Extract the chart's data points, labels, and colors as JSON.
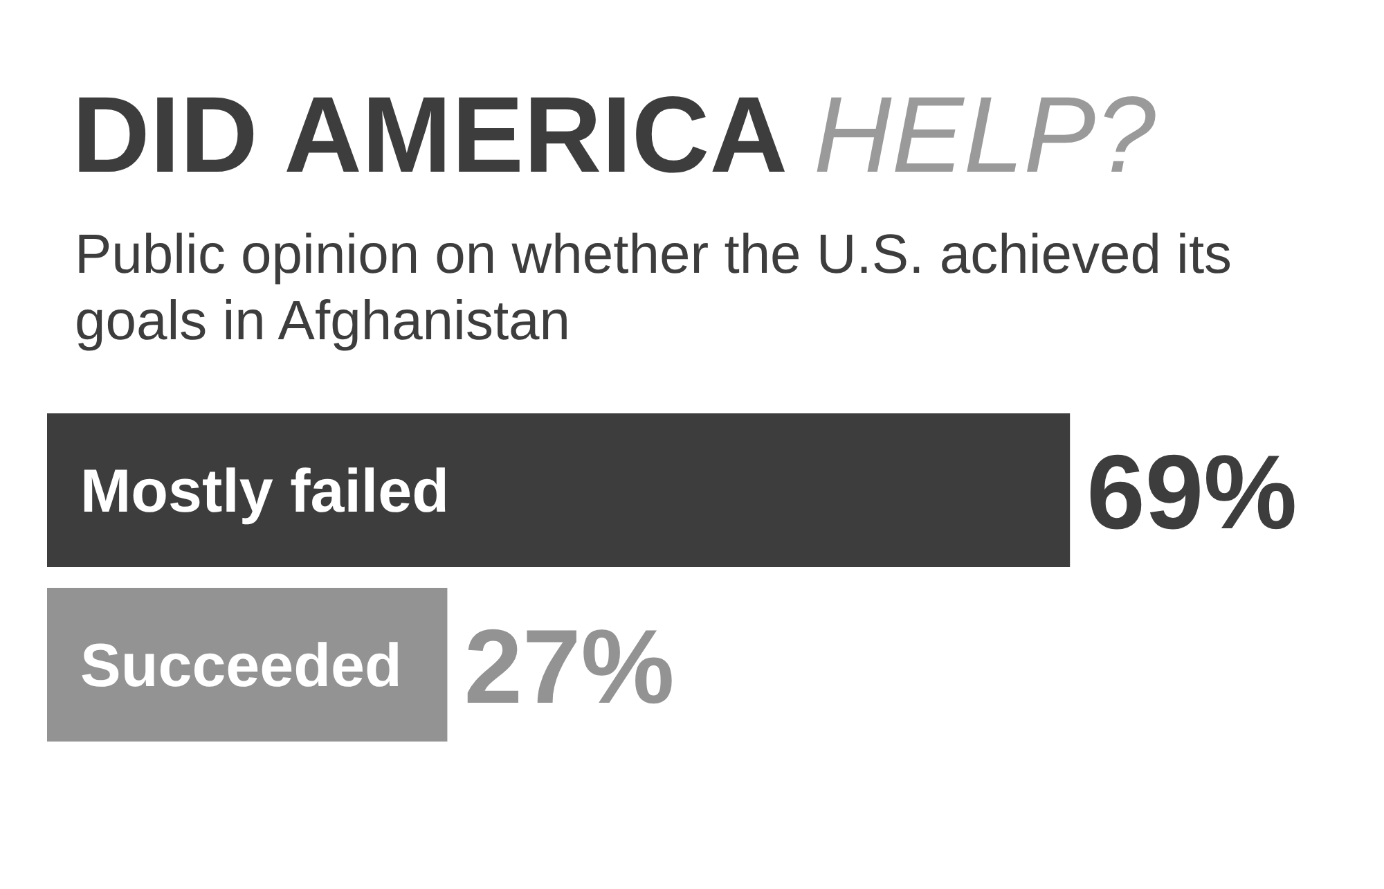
{
  "chart_data": {
    "type": "bar",
    "orientation": "horizontal",
    "title": "DID AMERICA HELP?",
    "subtitle": "Public opinion on whether the U.S. achieved its goals in Afghanistan",
    "categories": [
      "Mostly failed",
      "Succeeded"
    ],
    "values": [
      69,
      27
    ],
    "colors": [
      "#3d3d3d",
      "#939393"
    ],
    "value_labels": [
      "69%",
      "27%"
    ]
  }
}
